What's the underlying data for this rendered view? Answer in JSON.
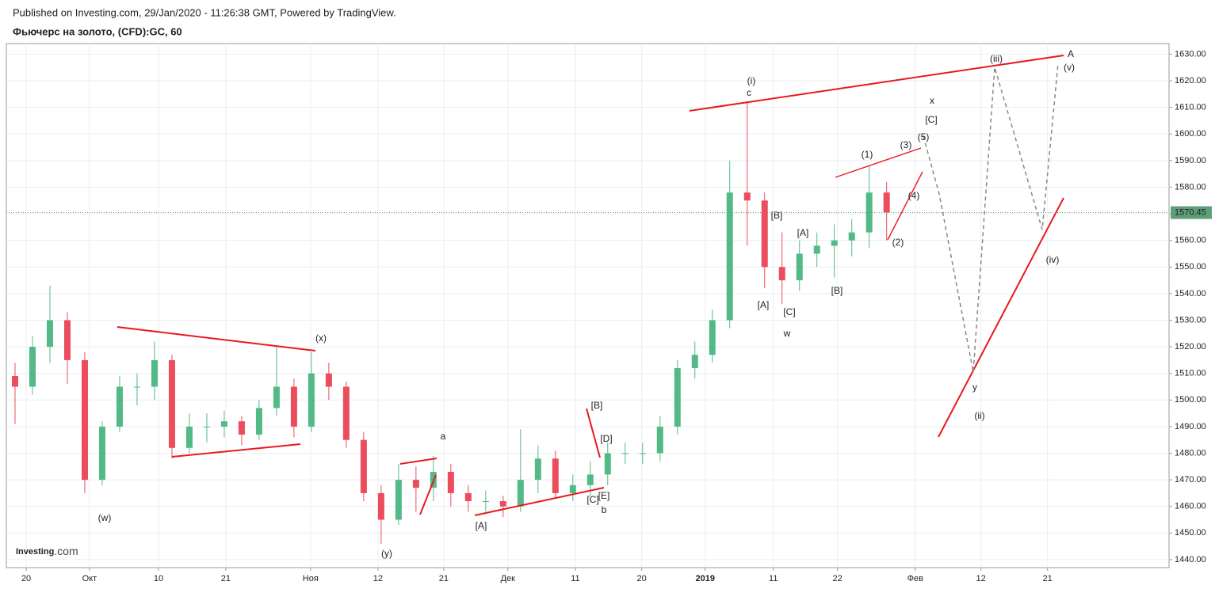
{
  "header": {
    "published": "Published on Investing.com, 29/Jan/2020 - 11:26:38 GMT, Powered by TradingView.",
    "symbol": "Фьючерс на золото, (CFD):GC, 60"
  },
  "logo": {
    "brand": "Investing",
    "suffix": ".com"
  },
  "chart_data": {
    "type": "candlestick",
    "up_color": "#53b987",
    "down_color": "#eb4d5c",
    "last_price_color": "#5e9e78",
    "grid": true,
    "open": [
      1509,
      1505,
      1520,
      1530,
      1515,
      1470,
      1490,
      1505,
      1505,
      1515,
      1482,
      1490,
      1490,
      1492,
      1487,
      1497,
      1505,
      1490,
      1510,
      1505,
      1485,
      1465,
      1455,
      1470,
      1467,
      1473,
      1465,
      1462,
      1462,
      1460,
      1470,
      1478,
      1465,
      1468,
      1472,
      1480,
      1480,
      1480,
      1490,
      1512,
      1517,
      1530,
      1578,
      1575,
      1550,
      1545,
      1555,
      1558,
      1560,
      1563,
      1578
    ],
    "high": [
      1514,
      1524,
      1543,
      1533,
      1518,
      1492,
      1509,
      1510,
      1522,
      1517,
      1495,
      1495,
      1496,
      1494,
      1500,
      1520,
      1508,
      1518,
      1514,
      1507,
      1488,
      1468,
      1476,
      1475,
      1479,
      1476,
      1468,
      1466,
      1464,
      1489,
      1483,
      1481,
      1472,
      1477,
      1484,
      1484,
      1484,
      1494,
      1515,
      1522,
      1534,
      1590,
      1612,
      1578,
      1563,
      1560,
      1563,
      1566,
      1568,
      1588,
      1582
    ],
    "low": [
      1491,
      1502,
      1514,
      1506,
      1465,
      1468,
      1488,
      1498,
      1500,
      1478,
      1480,
      1484,
      1486,
      1483,
      1485,
      1494,
      1486,
      1488,
      1500,
      1482,
      1462,
      1446,
      1453,
      1458,
      1462,
      1460,
      1458,
      1458,
      1456,
      1458,
      1465,
      1463,
      1462,
      1464,
      1468,
      1476,
      1476,
      1477,
      1487,
      1508,
      1514,
      1527,
      1558,
      1542,
      1536,
      1541,
      1550,
      1546,
      1554,
      1557,
      1560
    ],
    "close": [
      1505,
      1520,
      1530,
      1515,
      1470,
      1490,
      1505,
      1505,
      1515,
      1482,
      1490,
      1490,
      1492,
      1487,
      1497,
      1505,
      1490,
      1510,
      1505,
      1485,
      1465,
      1455,
      1470,
      1467,
      1473,
      1465,
      1462,
      1462,
      1460,
      1470,
      1478,
      1465,
      1468,
      1472,
      1480,
      1480,
      1480,
      1490,
      1512,
      1517,
      1530,
      1578,
      1575,
      1550,
      1545,
      1555,
      1558,
      1560,
      1563,
      1578,
      1570.45
    ],
    "xlim": [
      0,
      66.7
    ],
    "xticks": [
      {
        "value": 1.14,
        "label": "20"
      },
      {
        "value": 4.77,
        "label": "Окт"
      },
      {
        "value": 8.73,
        "label": "10"
      },
      {
        "value": 12.59,
        "label": "21"
      },
      {
        "value": 17.45,
        "label": "Ноя"
      },
      {
        "value": 21.32,
        "label": "12"
      },
      {
        "value": 25.09,
        "label": "21"
      },
      {
        "value": 28.77,
        "label": "Дек"
      },
      {
        "value": 32.64,
        "label": "11"
      },
      {
        "value": 36.45,
        "label": "20"
      },
      {
        "value": 40.09,
        "label": "2019"
      },
      {
        "value": 44,
        "label": "11"
      },
      {
        "value": 47.68,
        "label": "22"
      },
      {
        "value": 52.14,
        "label": "Фев"
      },
      {
        "value": 55.91,
        "label": "12"
      },
      {
        "value": 59.73,
        "label": "21"
      }
    ],
    "ylim": [
      1437,
      1634
    ],
    "yticks": [
      {
        "value": 1440,
        "label": "1440.00"
      },
      {
        "value": 1450,
        "label": "1450.00"
      },
      {
        "value": 1460,
        "label": "1460.00"
      },
      {
        "value": 1470,
        "label": "1470.00"
      },
      {
        "value": 1480,
        "label": "1480.00"
      },
      {
        "value": 1490,
        "label": "1490.00"
      },
      {
        "value": 1500,
        "label": "1500.00"
      },
      {
        "value": 1510,
        "label": "1510.00"
      },
      {
        "value": 1520,
        "label": "1520.00"
      },
      {
        "value": 1530,
        "label": "1530.00"
      },
      {
        "value": 1540,
        "label": "1540.00"
      },
      {
        "value": 1550,
        "label": "1550.00"
      },
      {
        "value": 1560,
        "label": "1560.00"
      },
      {
        "value": 1570,
        "label": "1570.00"
      },
      {
        "value": 1580,
        "label": "1580.00"
      },
      {
        "value": 1590,
        "label": "1590.00"
      },
      {
        "value": 1600,
        "label": "1600.00"
      },
      {
        "value": 1610,
        "label": "1610.00"
      },
      {
        "value": 1620,
        "label": "1620.00"
      },
      {
        "value": 1630,
        "label": "1630.00"
      }
    ],
    "annotations": [
      "(w)",
      "(x)",
      "(y)",
      "a",
      "b",
      "[A]",
      "[B]",
      "[C]",
      "[D]",
      "[E]",
      "(i)",
      "c",
      "[B]",
      "[A]",
      "[C]",
      "w",
      "[A]",
      "[B]",
      "(1)",
      "(2)",
      "(3)",
      "(4)",
      "(5)",
      "[C]",
      "x",
      "y",
      "(ii)",
      "(iii)",
      "A",
      "(v)",
      "(iv)"
    ]
  }
}
